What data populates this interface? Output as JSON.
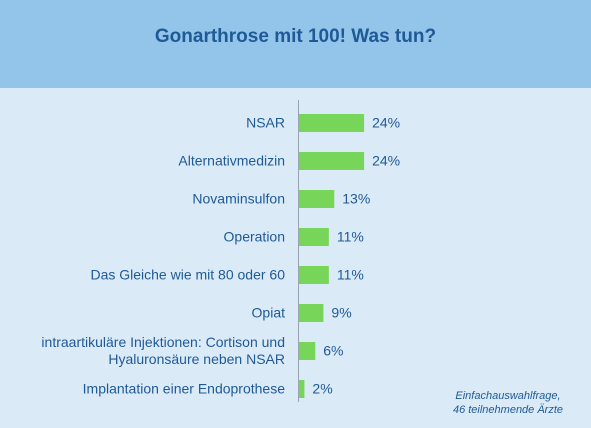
{
  "chart_data": {
    "type": "barh",
    "title": "Gonarthrose mit 100! Was tun?",
    "note": "Einfachauswahlfrage,\n46 teilnehmende Ärzte",
    "categories": [
      "NSAR",
      "Alternativmedizin",
      "Novaminsulfon",
      "Operation",
      "Das Gleiche wie mit 80 oder 60",
      "Opiat",
      "intraartikuläre Injektionen: Cortison und\nHyaluronsäure neben NSAR",
      "Implantation einer Endoprothese"
    ],
    "values": [
      24,
      24,
      13,
      11,
      11,
      9,
      6,
      2
    ],
    "value_labels": [
      "24%",
      "24%",
      "13%",
      "11%",
      "11%",
      "9%",
      "6%",
      "2%"
    ],
    "color": "#77d65a",
    "xlim": [
      0,
      80
    ]
  }
}
